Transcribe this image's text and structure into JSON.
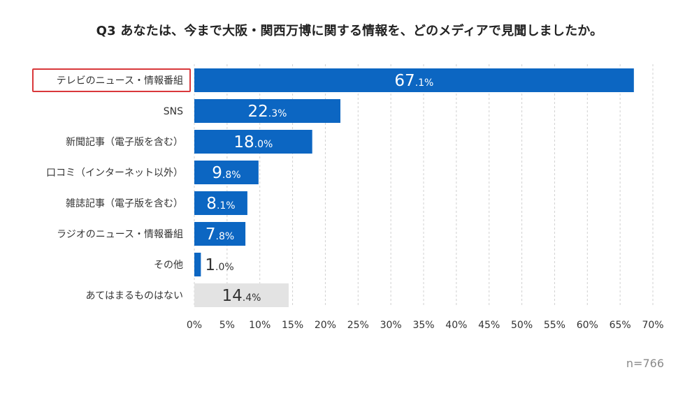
{
  "chart_data": {
    "type": "bar",
    "orientation": "horizontal",
    "title": "Q3 あなたは、今まで大阪・関西万博に関する情報を、どのメディアで見聞しましたか。",
    "categories": [
      "テレビのニュース・情報番組",
      "SNS",
      "新聞記事（電子版を含む）",
      "口コミ（インターネット以外）",
      "雑誌記事（電子版を含む）",
      "ラジオのニュース・情報番組",
      "その他",
      "あてはまるものはない"
    ],
    "values": [
      67.1,
      22.3,
      18.0,
      9.8,
      8.1,
      7.8,
      1.0,
      14.4
    ],
    "value_labels": [
      {
        "int": "67",
        "dec": ".1%"
      },
      {
        "int": "22",
        "dec": ".3%"
      },
      {
        "int": "18",
        "dec": ".0%"
      },
      {
        "int": "9",
        "dec": ".8%"
      },
      {
        "int": "8",
        "dec": ".1%"
      },
      {
        "int": "7",
        "dec": ".8%"
      },
      {
        "int": "1",
        "dec": ".0%"
      },
      {
        "int": "14",
        "dec": ".4%"
      }
    ],
    "xlim": [
      0,
      70
    ],
    "x_ticks": [
      "0%",
      "5%",
      "10%",
      "15%",
      "20%",
      "25%",
      "30%",
      "35%",
      "40%",
      "45%",
      "50%",
      "55%",
      "60%",
      "65%",
      "70%"
    ],
    "grid": "vertical dashed",
    "highlighted_category": "テレビのニュース・情報番組",
    "n_label": "n=766"
  },
  "colors": {
    "bar": "#0c66c2",
    "bar_none": "#e3e3e3",
    "highlight_box": "#d9383b",
    "grid": "#d0d0d0",
    "label_on_bar": "#ffffff",
    "label_outside": "#333333"
  }
}
